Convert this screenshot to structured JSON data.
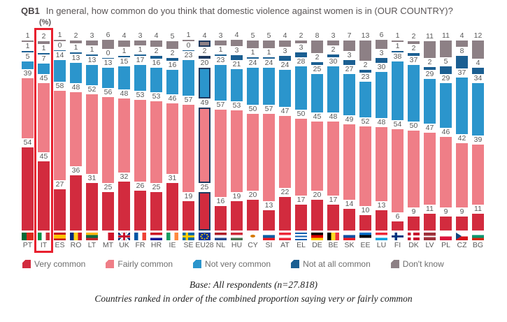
{
  "title": {
    "code": "QB1",
    "text": "In general, how common do you think that domestic violence against women is in (OUR COUNTRY)?",
    "unit_label": "(%)"
  },
  "chart_data": {
    "type": "bar",
    "stacked": true,
    "unit": "%",
    "categories": [
      "PT",
      "IT",
      "ES",
      "RO",
      "LT",
      "MT",
      "UK",
      "FR",
      "HR",
      "IE",
      "SE",
      "EU28",
      "NL",
      "HU",
      "CY",
      "SI",
      "AT",
      "EL",
      "DE",
      "BE",
      "SK",
      "EE",
      "LU",
      "FI",
      "DK",
      "LV",
      "PL",
      "CZ",
      "BG"
    ],
    "series": [
      {
        "key": "very",
        "name": "Very common",
        "color": "#d22b3e",
        "values": [
          54,
          45,
          27,
          36,
          31,
          25,
          32,
          26,
          25,
          31,
          19,
          25,
          16,
          19,
          20,
          13,
          22,
          17,
          20,
          17,
          14,
          10,
          13,
          6,
          9,
          11,
          9,
          9,
          11
        ]
      },
      {
        "key": "fairly",
        "name": "Fairly common",
        "color": "#ef7e87",
        "values": [
          39,
          45,
          58,
          48,
          52,
          56,
          48,
          53,
          53,
          46,
          57,
          49,
          57,
          53,
          50,
          57,
          47,
          50,
          45,
          48,
          49,
          52,
          48,
          54,
          50,
          47,
          46,
          42,
          39
        ]
      },
      {
        "key": "not-very",
        "name": "Not very common",
        "color": "#2b95cc",
        "values": [
          5,
          7,
          14,
          13,
          13,
          13,
          15,
          17,
          16,
          16,
          23,
          20,
          23,
          21,
          24,
          24,
          24,
          28,
          25,
          30,
          27,
          23,
          30,
          38,
          37,
          29,
          29,
          37,
          34
        ]
      },
      {
        "key": "not-at-all",
        "name": "Not at all common",
        "color": "#1b5f92",
        "values": [
          1,
          1,
          0,
          1,
          1,
          0,
          1,
          1,
          2,
          2,
          0,
          2,
          1,
          3,
          1,
          1,
          3,
          3,
          2,
          2,
          3,
          2,
          3,
          1,
          2,
          2,
          5,
          8,
          4
        ]
      },
      {
        "key": "dont-know",
        "name": "Don't know",
        "color": "#8d8085",
        "values": [
          1,
          2,
          1,
          2,
          3,
          6,
          4,
          3,
          4,
          5,
          1,
          4,
          3,
          4,
          5,
          5,
          4,
          2,
          8,
          3,
          7,
          13,
          6,
          1,
          2,
          11,
          11,
          4,
          12
        ]
      }
    ],
    "display_order_top_to_bottom": [
      "Don't know",
      "Not at all common",
      "Not very common",
      "Fairly common",
      "Very common"
    ],
    "highlighted_category": "IT",
    "outlined_category": "EU28",
    "legend_position": "bottom",
    "ylim": [
      0,
      100
    ],
    "grid": false
  },
  "colors": {
    "highlight_box": "#e8202e",
    "eu_outline": "#1f3a60",
    "label_text": "#595959",
    "legend_text": "#6e6e6e"
  },
  "footer": {
    "line1": "Base: All respondents (n=27.818)",
    "line2": "Countries ranked in order of the combined proportion saying very or fairly common"
  },
  "flags": {
    "PT": {
      "type": "v",
      "colors": [
        "#046a38",
        "#da291c"
      ],
      "widths": [
        40,
        60
      ]
    },
    "IT": {
      "type": "v",
      "colors": [
        "#009246",
        "#ffffff",
        "#ce2b37"
      ]
    },
    "ES": {
      "type": "h",
      "colors": [
        "#c60b1e",
        "#ffc400",
        "#c60b1e"
      ],
      "widths": [
        25,
        50,
        25
      ]
    },
    "RO": {
      "type": "v",
      "colors": [
        "#002b7f",
        "#fcd116",
        "#ce1126"
      ]
    },
    "LT": {
      "type": "h",
      "colors": [
        "#fdb913",
        "#006a44",
        "#c1272d"
      ]
    },
    "MT": {
      "type": "v",
      "colors": [
        "#ffffff",
        "#cf142b"
      ]
    },
    "UK": {
      "type": "uk",
      "bg": "#012169",
      "cross": "#c8102e",
      "diag": "#ffffff"
    },
    "FR": {
      "type": "v",
      "colors": [
        "#0055a4",
        "#ffffff",
        "#ef4135"
      ]
    },
    "HR": {
      "type": "h",
      "colors": [
        "#ce1126",
        "#ffffff",
        "#171796"
      ]
    },
    "IE": {
      "type": "v",
      "colors": [
        "#169b62",
        "#ffffff",
        "#ff883e"
      ]
    },
    "SE": {
      "type": "cross",
      "bg": "#006aa7",
      "cross": "#fecc00"
    },
    "EU28": {
      "type": "eu",
      "bg": "#003399",
      "star": "#ffcc00"
    },
    "NL": {
      "type": "h",
      "colors": [
        "#ae1c28",
        "#ffffff",
        "#21468b"
      ]
    },
    "HU": {
      "type": "h",
      "colors": [
        "#ce2939",
        "#ffffff",
        "#477050"
      ]
    },
    "CY": {
      "type": "cy",
      "bg": "#ffffff",
      "shape": "#d57800"
    },
    "SI": {
      "type": "h",
      "colors": [
        "#ffffff",
        "#005da4",
        "#ed1c24"
      ]
    },
    "AT": {
      "type": "h",
      "colors": [
        "#ed2939",
        "#ffffff",
        "#ed2939"
      ]
    },
    "EL": {
      "type": "h",
      "colors": [
        "#0d5eaf",
        "#ffffff",
        "#0d5eaf",
        "#ffffff",
        "#0d5eaf"
      ]
    },
    "DE": {
      "type": "h",
      "colors": [
        "#000000",
        "#dd0000",
        "#ffce00"
      ]
    },
    "BE": {
      "type": "v",
      "colors": [
        "#000000",
        "#fdda24",
        "#ef3340"
      ]
    },
    "SK": {
      "type": "h",
      "colors": [
        "#ffffff",
        "#0b4ea2",
        "#ee1c25"
      ]
    },
    "EE": {
      "type": "h",
      "colors": [
        "#0072ce",
        "#000000",
        "#ffffff"
      ]
    },
    "LU": {
      "type": "h",
      "colors": [
        "#ed2939",
        "#ffffff",
        "#00a1de"
      ]
    },
    "FI": {
      "type": "cross",
      "bg": "#ffffff",
      "cross": "#003580"
    },
    "DK": {
      "type": "cross",
      "bg": "#c8102e",
      "cross": "#ffffff"
    },
    "LV": {
      "type": "h",
      "colors": [
        "#9e3039",
        "#ffffff",
        "#9e3039"
      ],
      "widths": [
        40,
        20,
        40
      ]
    },
    "PL": {
      "type": "h",
      "colors": [
        "#ffffff",
        "#dc143c"
      ]
    },
    "CZ": {
      "type": "cz",
      "colors": [
        "#ffffff",
        "#d7141a"
      ],
      "triangle": "#11457e"
    },
    "BG": {
      "type": "h",
      "colors": [
        "#ffffff",
        "#00966e",
        "#d62612"
      ]
    }
  }
}
